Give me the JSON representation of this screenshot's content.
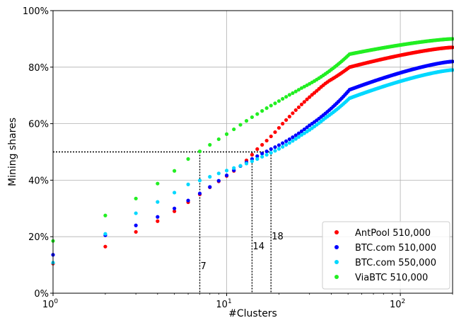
{
  "chart_data": {
    "type": "scatter",
    "xlabel": "#Clusters",
    "ylabel": "Mining shares",
    "xscale": "log",
    "xlim": [
      1,
      200
    ],
    "ylim": [
      0,
      100
    ],
    "x_ticks": [
      {
        "value": 1,
        "base": "10",
        "exp": "0"
      },
      {
        "value": 10,
        "base": "10",
        "exp": "1"
      },
      {
        "value": 100,
        "base": "10",
        "exp": "2"
      }
    ],
    "y_ticks": [
      {
        "value": 0,
        "label": "0%"
      },
      {
        "value": 20,
        "label": "20%"
      },
      {
        "value": 40,
        "label": "40%"
      },
      {
        "value": 60,
        "label": "60%"
      },
      {
        "value": 80,
        "label": "80%"
      },
      {
        "value": 100,
        "label": "100%"
      }
    ],
    "grid": true,
    "legend_position": "lower-right",
    "threshold": {
      "y": 50,
      "markers": [
        {
          "x": 7,
          "label": "7"
        },
        {
          "x": 14,
          "label": "14"
        },
        {
          "x": 18,
          "label": "18"
        }
      ]
    },
    "series": [
      {
        "name": "AntPool 510,000",
        "color": "#ff0000",
        "values": [
          10.5,
          16.5,
          21.7,
          25.5,
          29.0,
          32.2,
          35.0,
          37.5,
          39.6,
          41.5,
          43.3,
          45.0,
          47.0,
          49.0,
          51.0,
          52.5,
          54.0,
          55.5,
          57.0,
          58.5,
          60.0,
          61.3,
          62.5,
          63.7,
          64.8,
          65.8,
          66.8,
          67.7,
          68.6,
          69.4,
          70.2,
          70.9,
          71.6,
          72.3,
          73.0,
          73.6,
          74.2,
          74.7,
          75.2,
          75.6,
          76.0,
          76.4,
          76.8,
          77.2,
          77.6,
          78.0,
          78.4,
          78.8,
          79.2,
          79.6,
          80.0
        ]
      },
      {
        "name": "BTC.com 510,000",
        "color": "#0000ff",
        "values": [
          13.6,
          20.5,
          24.0,
          27.0,
          30.0,
          32.8,
          35.3,
          37.6,
          39.8,
          41.7,
          43.5,
          45.0,
          46.3,
          47.5,
          48.5,
          49.4,
          50.2,
          51.0,
          51.7,
          52.4,
          53.1,
          53.8,
          54.5,
          55.2,
          55.9,
          56.6,
          57.3,
          58.0,
          58.7,
          59.4,
          60.0,
          60.6,
          61.2,
          61.8,
          62.4,
          63.0,
          63.6,
          64.2,
          64.8,
          65.4,
          66.0,
          66.6,
          67.2,
          67.8,
          68.4,
          69.0,
          69.6,
          70.2,
          70.8,
          71.4,
          72.0
        ]
      },
      {
        "name": "BTC.com 550,000",
        "color": "#00d8ff",
        "values": [
          10.8,
          21.0,
          28.3,
          32.3,
          35.6,
          38.5,
          39.9,
          41.2,
          42.4,
          43.4,
          44.3,
          45.1,
          45.9,
          46.7,
          47.5,
          48.3,
          49.0,
          49.7,
          50.4,
          51.1,
          51.8,
          52.5,
          53.2,
          53.9,
          54.6,
          55.3,
          56.0,
          56.6,
          57.2,
          57.8,
          58.4,
          59.0,
          59.6,
          60.2,
          60.8,
          61.4,
          62.0,
          62.5,
          63.0,
          63.5,
          64.0,
          64.5,
          65.0,
          65.5,
          66.0,
          66.5,
          67.0,
          67.5,
          68.0,
          68.5,
          69.0
        ]
      },
      {
        "name": "ViaBTC 510,000",
        "color": "#22ee22",
        "values": [
          18.5,
          27.5,
          33.5,
          38.8,
          43.3,
          47.5,
          50.2,
          52.5,
          54.5,
          56.3,
          58.0,
          59.6,
          61.0,
          62.3,
          63.4,
          64.5,
          65.5,
          66.4,
          67.2,
          68.0,
          68.8,
          69.5,
          70.2,
          70.8,
          71.4,
          72.0,
          72.6,
          73.1,
          73.6,
          74.1,
          74.6,
          75.1,
          75.6,
          76.1,
          76.6,
          77.1,
          77.6,
          78.1,
          78.6,
          79.1,
          79.6,
          80.1,
          80.6,
          81.1,
          81.6,
          82.1,
          82.6,
          83.1,
          83.6,
          84.1,
          84.6
        ]
      }
    ],
    "tail": {
      "x_range": [
        51,
        200
      ],
      "end_values": {
        "AntPool 510,000": 87,
        "BTC.com 510,000": 82,
        "BTC.com 550,000": 79,
        "ViaBTC 510,000": 90
      }
    }
  }
}
